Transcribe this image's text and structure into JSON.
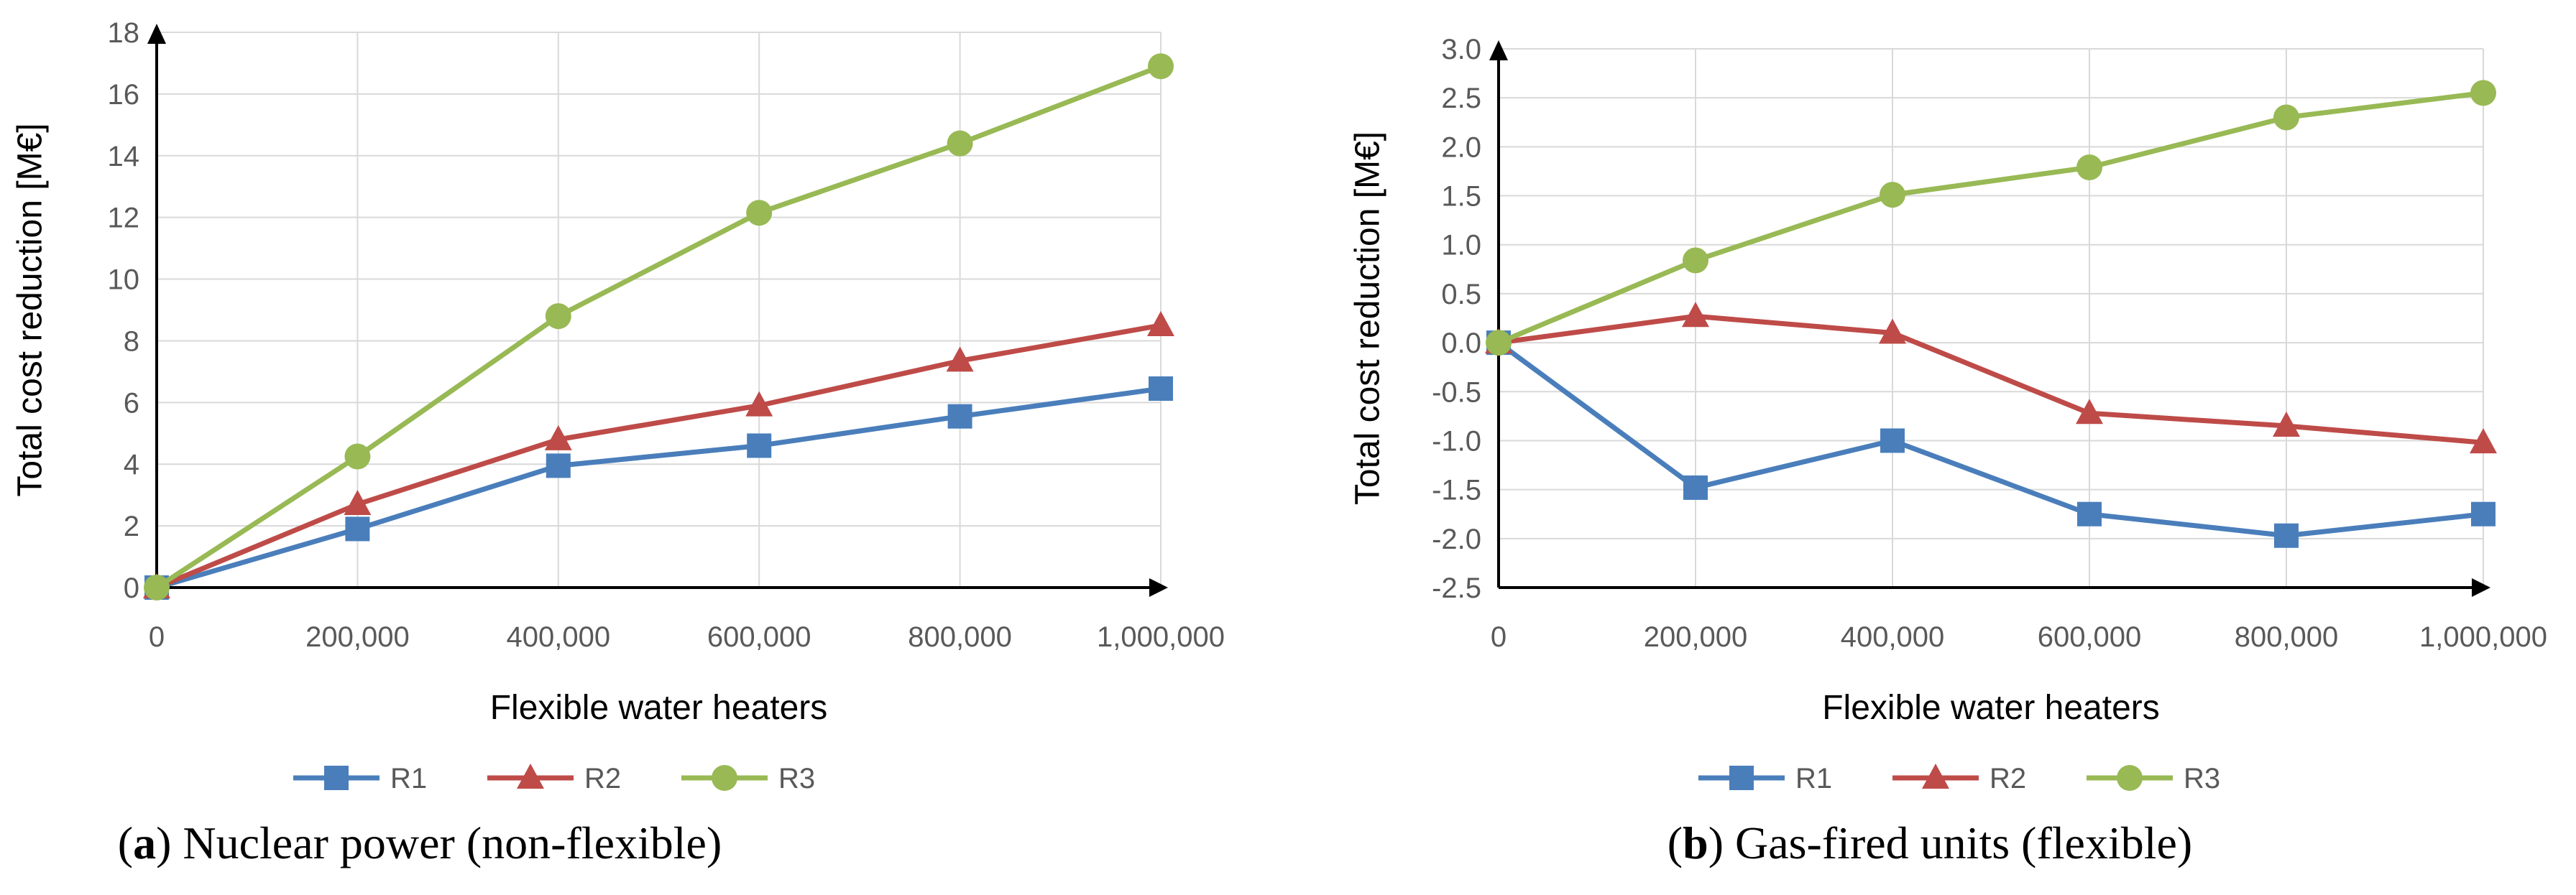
{
  "colors": {
    "R1": "#4a7ebb",
    "R2": "#be4b48",
    "R3": "#98b954",
    "grid": "#d9d9d9",
    "axis": "#000000"
  },
  "chart_data": [
    {
      "type": "line",
      "id": "a",
      "caption_letter": "a",
      "caption_text": " Nuclear power (non-flexible)",
      "xlabel": "Flexible water heaters",
      "ylabel": "Total cost reduction [M€]",
      "x": [
        0,
        200000,
        400000,
        600000,
        800000,
        1000000
      ],
      "x_tick_labels": [
        "0",
        "200,000",
        "400,000",
        "600,000",
        "800,000",
        "1,000,000"
      ],
      "ylim": [
        0,
        18
      ],
      "y_ticks": [
        0,
        2,
        4,
        6,
        8,
        10,
        12,
        14,
        16,
        18
      ],
      "y_tick_labels": [
        "0",
        "2",
        "4",
        "6",
        "8",
        "10",
        "12",
        "14",
        "16",
        "18"
      ],
      "grid": true,
      "legend_position": "bottom-center",
      "series": [
        {
          "name": "R1",
          "marker": "square",
          "values": [
            0,
            1.9,
            3.95,
            4.6,
            5.55,
            6.45
          ]
        },
        {
          "name": "R2",
          "marker": "triangle",
          "values": [
            0,
            2.7,
            4.8,
            5.9,
            7.35,
            8.5
          ]
        },
        {
          "name": "R3",
          "marker": "circle",
          "values": [
            0,
            4.25,
            8.8,
            12.15,
            14.4,
            16.9
          ]
        }
      ]
    },
    {
      "type": "line",
      "id": "b",
      "caption_letter": "b",
      "caption_text": " Gas-fired units (flexible)",
      "xlabel": "Flexible water heaters",
      "ylabel": "Total cost reduction [M€]",
      "x": [
        0,
        200000,
        400000,
        600000,
        800000,
        1000000
      ],
      "x_tick_labels": [
        "0",
        "200,000",
        "400,000",
        "600,000",
        "800,000",
        "1,000,000"
      ],
      "ylim": [
        -2.5,
        3.0
      ],
      "y_ticks": [
        3.0,
        2.5,
        2.0,
        1.5,
        1.0,
        0.5,
        0.0,
        -0.5,
        -1.0,
        -1.5,
        -2.0,
        -2.5
      ],
      "y_tick_labels": [
        "3.0",
        "2.5",
        "2.0",
        "1.5",
        "1.0",
        "0.5",
        "0.0",
        "-0.5",
        "-1.0",
        "-1.5",
        "-2.0",
        "-2.5"
      ],
      "grid": true,
      "legend_position": "bottom-center",
      "series": [
        {
          "name": "R1",
          "marker": "square",
          "values": [
            0,
            -1.48,
            -1.0,
            -1.75,
            -1.97,
            -1.75
          ]
        },
        {
          "name": "R2",
          "marker": "triangle",
          "values": [
            0,
            0.27,
            0.1,
            -0.72,
            -0.85,
            -1.02
          ]
        },
        {
          "name": "R3",
          "marker": "circle",
          "values": [
            0,
            0.84,
            1.51,
            1.79,
            2.3,
            2.55
          ]
        }
      ]
    }
  ]
}
